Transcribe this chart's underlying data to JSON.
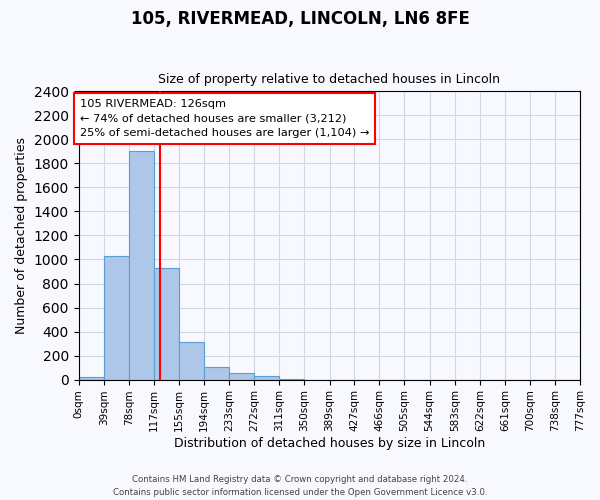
{
  "title": "105, RIVERMEAD, LINCOLN, LN6 8FE",
  "subtitle": "Size of property relative to detached houses in Lincoln",
  "xlabel": "Distribution of detached houses by size in Lincoln",
  "ylabel": "Number of detached properties",
  "bar_values": [
    20,
    1025,
    1900,
    930,
    315,
    105,
    55,
    30,
    5,
    0,
    0,
    0,
    0,
    0,
    0,
    0,
    0,
    0,
    0,
    0
  ],
  "bin_edges": [
    0,
    39,
    78,
    117,
    155,
    194,
    233,
    272,
    311,
    350,
    389,
    427,
    466,
    505,
    544,
    583,
    622,
    661,
    700,
    738,
    777
  ],
  "tick_labels": [
    "0sqm",
    "39sqm",
    "78sqm",
    "117sqm",
    "155sqm",
    "194sqm",
    "233sqm",
    "272sqm",
    "311sqm",
    "350sqm",
    "389sqm",
    "427sqm",
    "466sqm",
    "505sqm",
    "544sqm",
    "583sqm",
    "622sqm",
    "661sqm",
    "700sqm",
    "738sqm",
    "777sqm"
  ],
  "bar_color": "#aec6e8",
  "bar_edgecolor": "#5a9fd4",
  "vline_x": 126,
  "vline_color": "red",
  "ylim": [
    0,
    2400
  ],
  "yticks": [
    0,
    200,
    400,
    600,
    800,
    1000,
    1200,
    1400,
    1600,
    1800,
    2000,
    2200,
    2400
  ],
  "annotation_title": "105 RIVERMEAD: 126sqm",
  "annotation_line1": "← 74% of detached houses are smaller (3,212)",
  "annotation_line2": "25% of semi-detached houses are larger (1,104) →",
  "annotation_box_color": "white",
  "annotation_box_edgecolor": "red",
  "footer1": "Contains HM Land Registry data © Crown copyright and database right 2024.",
  "footer2": "Contains public sector information licensed under the Open Government Licence v3.0.",
  "background_color": "#f8f8ff",
  "grid_color": "#d0d8e8"
}
